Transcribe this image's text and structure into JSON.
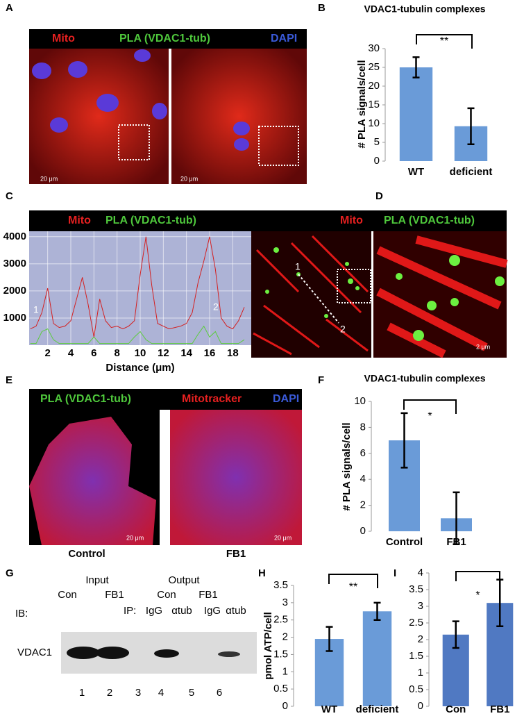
{
  "panels": {
    "A": {
      "label": "A",
      "header": [
        "Mito",
        "PLA (VDAC1-tub)",
        "DAPI"
      ],
      "scale_bars": [
        "20 μm",
        "20 μm"
      ]
    },
    "B": {
      "label": "B"
    },
    "C": {
      "label": "C",
      "header": [
        "Mito",
        "PLA (VDAC1-tub)"
      ]
    },
    "D": {
      "label": "D",
      "header": [
        "Mito",
        "PLA (VDAC1-tub)"
      ],
      "points": [
        "1",
        "2"
      ],
      "scale_bar": "2 μm"
    },
    "E": {
      "label": "E",
      "header": [
        "PLA (VDAC1-tub)",
        "Mitotracker",
        "DAPI"
      ],
      "scale_bars": [
        "20 μm",
        "20 μm"
      ],
      "captions": [
        "Control",
        "FB1"
      ]
    },
    "F": {
      "label": "F"
    },
    "G": {
      "label": "G",
      "groups": [
        "Input",
        "Output"
      ],
      "treatments": [
        "Con",
        "FB1",
        "Con",
        "FB1"
      ],
      "ib": "IB:",
      "ip": "IP:",
      "antibodies": [
        "IgG",
        "αtub",
        "IgG",
        "αtub"
      ],
      "protein": "VDAC1",
      "lanes": [
        "1",
        "2",
        "3",
        "4",
        "5",
        "6"
      ]
    },
    "H": {
      "label": "H"
    },
    "I": {
      "label": "I"
    }
  },
  "chart_data": [
    {
      "type": "bar",
      "title": "VDAC1-tubulin complexes",
      "y_label": "# PLA signals/cell",
      "categories": [
        "WT",
        "deficient"
      ],
      "values": [
        25,
        9.3
      ],
      "errors": [
        2.7,
        4.8
      ],
      "color": "#6a9bd8",
      "ylim": [
        0,
        30
      ],
      "yticks": [
        0,
        5,
        10,
        15,
        20,
        25,
        30
      ],
      "annotation": "**"
    },
    {
      "type": "line",
      "x_label": "Distance (μm)",
      "point_labels": [
        "1",
        "2"
      ],
      "x": [
        0.5,
        1,
        1.5,
        2,
        2.5,
        3,
        3.5,
        4,
        4.5,
        5,
        5.5,
        6,
        6.5,
        7,
        7.5,
        8,
        8.5,
        9,
        9.5,
        10,
        10.5,
        11,
        11.5,
        12,
        12.5,
        13,
        13.5,
        14,
        14.5,
        15,
        15.5,
        16,
        16.5,
        17,
        17.5,
        18,
        18.5,
        19
      ],
      "series": [
        {
          "name": "Mito",
          "color": "#d42020",
          "values": [
            600,
            700,
            1200,
            2100,
            800,
            650,
            700,
            900,
            1700,
            2500,
            1500,
            300,
            1700,
            900,
            650,
            700,
            600,
            700,
            900,
            2600,
            4000,
            2200,
            800,
            700,
            600,
            650,
            700,
            800,
            1200,
            2300,
            3100,
            4000,
            2800,
            1000,
            700,
            600,
            900,
            1400
          ]
        },
        {
          "name": "PLA (VDAC1-tub)",
          "color": "#5ccc3c",
          "values": [
            60,
            60,
            500,
            600,
            200,
            60,
            60,
            60,
            60,
            60,
            60,
            300,
            60,
            60,
            60,
            60,
            60,
            60,
            300,
            500,
            200,
            60,
            60,
            60,
            60,
            60,
            60,
            60,
            60,
            400,
            700,
            300,
            500,
            60,
            60,
            60,
            60,
            200
          ]
        }
      ],
      "xlim": [
        0.4,
        19.6
      ],
      "xticks": [
        2,
        4,
        6,
        8,
        10,
        12,
        14,
        16,
        18
      ],
      "ylim": [
        0,
        4200
      ],
      "yticks": [
        1000,
        2000,
        3000,
        4000
      ],
      "grid": true
    },
    {
      "type": "bar",
      "title": "VDAC1-tubulin complexes",
      "y_label": "# PLA signals/cell",
      "categories": [
        "Control",
        "FB1"
      ],
      "values": [
        7,
        1
      ],
      "errors": [
        2.1,
        2
      ],
      "color": "#6a9bd8",
      "ylim": [
        0,
        10
      ],
      "yticks": [
        0,
        2,
        4,
        6,
        8,
        10
      ],
      "annotation": "*"
    },
    {
      "type": "bar",
      "y_label": "pmol ATP/cell",
      "categories": [
        "WT",
        "deficient"
      ],
      "values": [
        1.95,
        2.75
      ],
      "errors": [
        0.35,
        0.25
      ],
      "color": "#6a9bd8",
      "ylim": [
        0,
        3.5
      ],
      "yticks": [
        0,
        0.5,
        1,
        1.5,
        2,
        2.5,
        3,
        3.5
      ],
      "annotation": "**"
    },
    {
      "type": "bar",
      "categories": [
        "Con",
        "FB1"
      ],
      "values": [
        2.15,
        3.1
      ],
      "errors": [
        0.4,
        0.7
      ],
      "color": "#5079c2",
      "ylim": [
        0,
        4
      ],
      "yticks": [
        0,
        0.5,
        1,
        1.5,
        2,
        2.5,
        3,
        3.5,
        4
      ],
      "annotation": "*"
    }
  ]
}
